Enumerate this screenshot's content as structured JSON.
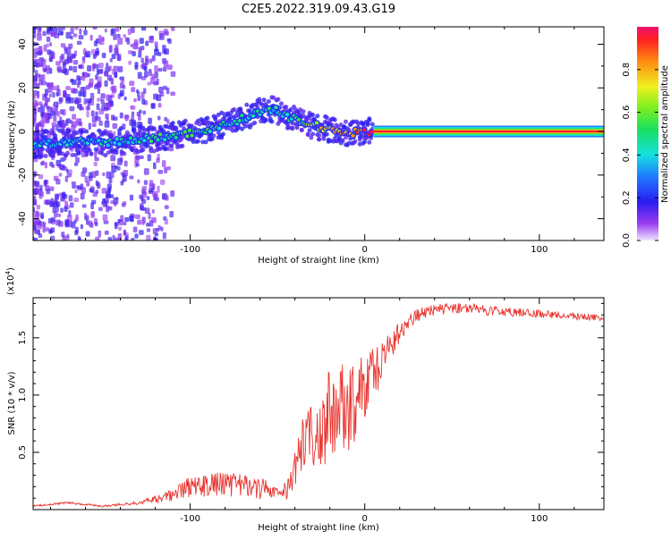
{
  "title": "C2E5.2022.319.09.43.G19",
  "chart_data": [
    {
      "type": "heatmap",
      "xlabel": "Height of straight line (km)",
      "ylabel": "Frequency (Hz)",
      "xlim": [
        -190,
        137
      ],
      "ylim": [
        -50,
        48
      ],
      "x_ticks": [
        -100,
        0,
        100
      ],
      "x_tick_labels": [
        "-100",
        "0",
        "100"
      ],
      "y_ticks": [
        -40,
        -20,
        0,
        20,
        40
      ],
      "y_tick_labels": [
        "-40",
        "-20",
        "0",
        "20",
        "40"
      ],
      "colorbar": {
        "label": "Normalized spectral amplitude",
        "range": [
          0,
          1
        ],
        "ticks": [
          0.0,
          0.2,
          0.4,
          0.6,
          0.8
        ],
        "tick_labels": [
          "0.0",
          "0.2",
          "0.4",
          "0.6",
          "0.8"
        ],
        "colormap": "rainbow"
      },
      "ridge": {
        "x": [
          -190,
          -170,
          -150,
          -130,
          -110,
          -95,
          -80,
          -70,
          -60,
          -52,
          -45,
          -38,
          -30,
          -20,
          -10,
          0,
          5,
          137
        ],
        "freq": [
          -6,
          -5,
          -5,
          -4,
          -2,
          0,
          3,
          6,
          9,
          10,
          7,
          5,
          3,
          1,
          -1,
          0,
          0,
          0
        ],
        "amplitude": [
          0.45,
          0.45,
          0.48,
          0.5,
          0.55,
          0.55,
          0.52,
          0.5,
          0.5,
          0.48,
          0.55,
          0.6,
          0.75,
          0.8,
          0.9,
          0.95,
          1.0,
          1.0
        ]
      }
    },
    {
      "type": "line",
      "xlabel": "Height of straight line (km)",
      "ylabel": "SNR (10 * v/v)",
      "y_multiplier_label": "(x10",
      "y_multiplier_exp": "4",
      "xlim": [
        -190,
        137
      ],
      "ylim": [
        0,
        18500
      ],
      "x_ticks": [
        -100,
        0,
        100
      ],
      "x_tick_labels": [
        "-100",
        "0",
        "100"
      ],
      "y_ticks": [
        5000,
        10000,
        15000
      ],
      "y_tick_labels": [
        "0.5",
        "1.0",
        "1.5"
      ],
      "color": "#e8352f",
      "series": [
        {
          "x": [
            -190,
            -170,
            -150,
            -130,
            -115,
            -100,
            -85,
            -70,
            -55,
            -45,
            -40,
            -35,
            -30,
            -25,
            -20,
            -15,
            -10,
            -5,
            0,
            5,
            10,
            15,
            20,
            30,
            40,
            50,
            60,
            80,
            100,
            120,
            137
          ],
          "y": [
            300,
            600,
            300,
            600,
            1000,
            2000,
            2200,
            2100,
            1700,
            1500,
            3500,
            6000,
            6500,
            7000,
            8500,
            8800,
            9000,
            9500,
            10500,
            12000,
            13000,
            14500,
            15500,
            17000,
            17400,
            17600,
            17500,
            17300,
            17100,
            16900,
            16700
          ],
          "noise": [
            80,
            100,
            80,
            150,
            400,
            900,
            1100,
            1000,
            900,
            800,
            1600,
            2400,
            3000,
            3600,
            4200,
            4200,
            4000,
            3400,
            3200,
            2800,
            2200,
            1400,
            900,
            600,
            500,
            500,
            500,
            400,
            350,
            300,
            300
          ]
        }
      ]
    }
  ]
}
